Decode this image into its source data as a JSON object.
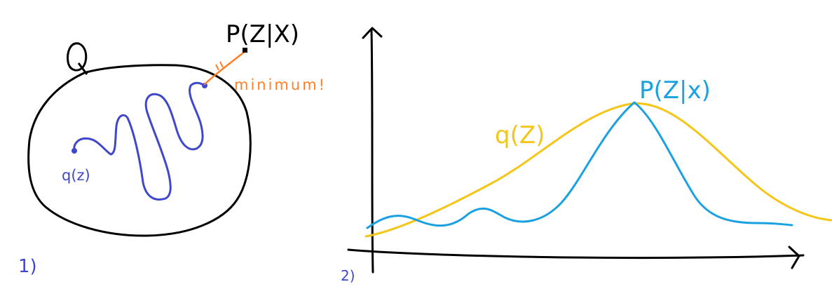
{
  "panel1": {
    "number_label": "1)",
    "set_label": "Q",
    "target_label": "P(Z|X)",
    "start_label": "q(z)",
    "gap_label": "minimum!"
  },
  "panel2": {
    "number_label": "2)",
    "q_label": "q(Z)",
    "p_label": "P(Z|x)"
  },
  "colors": {
    "ink": "#000000",
    "path_blue": "#3f48cc",
    "gap_orange": "#ff7f27",
    "q_curve": "#f5c518",
    "p_curve": "#1ba1e2"
  }
}
